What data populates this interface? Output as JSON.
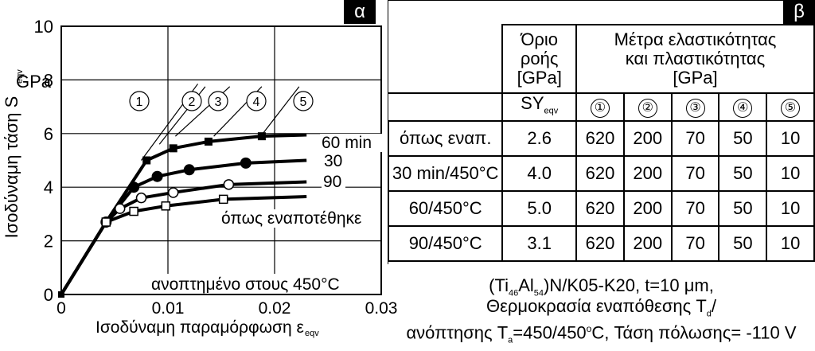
{
  "panel_a": {
    "tag": "α",
    "ylabel_main": "Ισοδύναμη τάση S",
    "ylabel_sub": "eqv",
    "ylabel_unit": "GPa",
    "xlabel_main": "Ισοδύναμη παραμόρφωση ε",
    "xlabel_sub": "eqv",
    "annotation": "ανοπτημένο στους 450°C",
    "line_labels": [
      "①",
      "②",
      "③",
      "④",
      "⑤"
    ]
  },
  "panel_b": {
    "tag": "β",
    "header_yield": "Όριο ροής [GPa]",
    "header_moduli": "Μέτρα ελαστικότητας και πλαστικότητας [GPa]",
    "sy_label": "SY",
    "sy_sub": "eqv",
    "moduli_cols": [
      "①",
      "②",
      "③",
      "④",
      "⑤"
    ],
    "rows": [
      {
        "name": "όπως εναπ.",
        "sy": "2.6",
        "m": [
          "620",
          "200",
          "70",
          "50",
          "10"
        ]
      },
      {
        "name": "30 min/450°C",
        "sy": "4.0",
        "m": [
          "620",
          "200",
          "70",
          "50",
          "10"
        ]
      },
      {
        "name": "60/450°C",
        "sy": "5.0",
        "m": [
          "620",
          "200",
          "70",
          "50",
          "10"
        ]
      },
      {
        "name": "90/450°C",
        "sy": "3.1",
        "m": [
          "620",
          "200",
          "70",
          "50",
          "10"
        ]
      }
    ],
    "caption_line1": "(Ti46Al54)N/K05-K20, t=10 μm,",
    "caption_line2": "Θερμοκρασία εναπόθεσης Td/",
    "caption_line3": "ανόπτησης Ta=450/450°C, Τάση πόλωσης= -110 V"
  },
  "chart_data": {
    "type": "line",
    "xlabel": "Ισοδύναμη παραμόρφωση εeqv",
    "ylabel": "Ισοδύναμη τάση Seqv GPa",
    "xlim": [
      0,
      0.03
    ],
    "ylim": [
      0,
      10
    ],
    "x_ticks": [
      "0",
      "0.01",
      "0.02",
      "0.03"
    ],
    "y_ticks": [
      "0",
      "2",
      "4",
      "6",
      "8",
      "10"
    ],
    "grid": true,
    "series": [
      {
        "name": "60 min",
        "marker": "filled-square",
        "x": [
          0,
          0.0042,
          0.008,
          0.0105,
          0.0138,
          0.0188,
          0.023
        ],
        "y": [
          0,
          2.7,
          5.0,
          5.45,
          5.7,
          5.9,
          5.95
        ]
      },
      {
        "name": "30",
        "marker": "filled-circle",
        "x": [
          0,
          0.0042,
          0.0068,
          0.009,
          0.012,
          0.0173,
          0.023
        ],
        "y": [
          0,
          2.7,
          4.0,
          4.4,
          4.65,
          4.9,
          5.0
        ]
      },
      {
        "name": "90",
        "marker": "open-circle",
        "x": [
          0,
          0.0042,
          0.0055,
          0.0075,
          0.0105,
          0.0157,
          0.023
        ],
        "y": [
          0,
          2.7,
          3.2,
          3.6,
          3.8,
          4.1,
          4.2
        ]
      },
      {
        "name": "όπως εναποτέθηκε",
        "marker": "open-square",
        "x": [
          0,
          0.0042,
          0.0068,
          0.0098,
          0.0152,
          0.023
        ],
        "y": [
          0,
          2.7,
          3.1,
          3.3,
          3.55,
          3.65
        ]
      }
    ],
    "reference_lines": [
      {
        "label": "①",
        "x": [
          0.0075,
          0.0128
        ],
        "y": [
          5.0,
          7.85
        ]
      },
      {
        "label": "②",
        "x": [
          0.0092,
          0.0135
        ],
        "y": [
          5.6,
          7.75
        ]
      },
      {
        "label": "③",
        "x": [
          0.0107,
          0.0158
        ],
        "y": [
          5.9,
          7.75
        ]
      },
      {
        "label": "④",
        "x": [
          0.0143,
          0.0188
        ],
        "y": [
          5.9,
          7.75
        ]
      },
      {
        "label": "⑤",
        "x": [
          0.0188,
          0.0223
        ],
        "y": [
          5.95,
          7.75
        ]
      }
    ]
  }
}
